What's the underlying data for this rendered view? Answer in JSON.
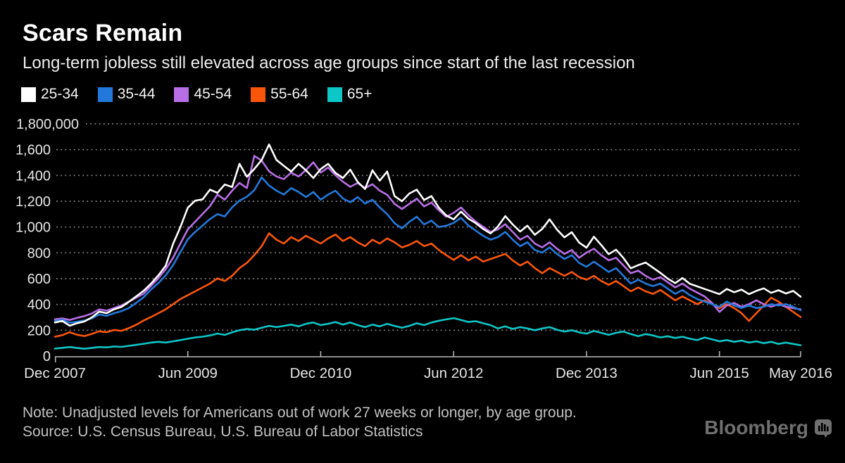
{
  "header": {
    "title": "Scars Remain",
    "subtitle": "Long-term jobless still elevated across age groups since start of the last recession"
  },
  "footer": {
    "note": "Note: Unadjusted levels for Americans out of work 27 weeks or longer, by age group.",
    "source": "Source: U.S. Census Bureau, U.S. Bureau of Labor Statistics",
    "brand": "Bloomberg"
  },
  "colors": {
    "background": "#000000",
    "gridline": "#8a8a8a",
    "axis": "#bbbbbb",
    "tick_label": "#e6e6e6"
  },
  "chart_data": {
    "type": "line",
    "title": "Scars Remain",
    "xlabel": "",
    "ylabel": "",
    "values_in": "thousands of persons",
    "x_unit": "month",
    "x_range": [
      "Dec 2007",
      "May 2016"
    ],
    "ylim": [
      0,
      1800
    ],
    "grid": "dotted horizontal",
    "legend_position": "top-left",
    "y_ticks": [
      {
        "value": 1800,
        "label": "1,800,000"
      },
      {
        "value": 1600,
        "label": "1,600"
      },
      {
        "value": 1400,
        "label": "1,400"
      },
      {
        "value": 1200,
        "label": "1,200"
      },
      {
        "value": 1000,
        "label": "1,000"
      },
      {
        "value": 800,
        "label": "800"
      },
      {
        "value": 600,
        "label": "600"
      },
      {
        "value": 400,
        "label": "400"
      },
      {
        "value": 200,
        "label": "200"
      },
      {
        "value": 0,
        "label": "0"
      }
    ],
    "x_ticks": [
      {
        "month_index": 0,
        "label": "Dec 2007"
      },
      {
        "month_index": 18,
        "label": "Jun 2009"
      },
      {
        "month_index": 36,
        "label": "Dec 2010"
      },
      {
        "month_index": 54,
        "label": "Jun 2012"
      },
      {
        "month_index": 72,
        "label": "Dec 2013"
      },
      {
        "month_index": 90,
        "label": "Jun 2015"
      },
      {
        "month_index": 101,
        "label": "May 2016"
      }
    ],
    "series": [
      {
        "name": "25-34",
        "color": "#ffffff",
        "values": [
          260,
          272,
          235,
          255,
          268,
          300,
          345,
          332,
          362,
          380,
          420,
          462,
          505,
          560,
          625,
          700,
          870,
          1000,
          1150,
          1205,
          1215,
          1290,
          1265,
          1330,
          1310,
          1490,
          1390,
          1450,
          1520,
          1640,
          1520,
          1475,
          1430,
          1490,
          1440,
          1380,
          1450,
          1490,
          1420,
          1380,
          1445,
          1350,
          1295,
          1440,
          1360,
          1430,
          1240,
          1200,
          1260,
          1290,
          1210,
          1240,
          1150,
          1090,
          1060,
          1120,
          1065,
          1030,
          985,
          950,
          1005,
          1085,
          1020,
          965,
          1010,
          940,
          985,
          1060,
          980,
          920,
          960,
          880,
          840,
          925,
          860,
          790,
          825,
          760,
          680,
          705,
          725,
          685,
          645,
          600,
          565,
          605,
          560,
          540,
          520,
          500,
          480,
          520,
          495,
          515,
          480,
          505,
          525,
          490,
          510,
          485,
          505,
          460
        ]
      },
      {
        "name": "35-44",
        "color": "#2279db",
        "values": [
          272,
          282,
          258,
          266,
          276,
          292,
          322,
          312,
          332,
          348,
          372,
          412,
          455,
          515,
          565,
          625,
          705,
          805,
          905,
          962,
          1012,
          1062,
          1100,
          1082,
          1152,
          1205,
          1235,
          1285,
          1385,
          1322,
          1282,
          1252,
          1302,
          1272,
          1232,
          1272,
          1212,
          1252,
          1282,
          1222,
          1192,
          1232,
          1182,
          1212,
          1152,
          1100,
          1030,
          990,
          1040,
          1080,
          1020,
          1050,
          1000,
          1010,
          1032,
          1072,
          1012,
          972,
          932,
          902,
          922,
          962,
          902,
          852,
          882,
          822,
          802,
          842,
          792,
          752,
          782,
          722,
          692,
          732,
          692,
          652,
          682,
          622,
          562,
          592,
          562,
          542,
          562,
          522,
          482,
          512,
          472,
          442,
          422,
          402,
          382,
          422,
          392,
          372,
          392,
          372,
          382,
          402,
          392,
          402,
          382,
          355
        ]
      },
      {
        "name": "45-54",
        "color": "#b76ee6",
        "values": [
          285,
          292,
          280,
          296,
          310,
          330,
          362,
          352,
          372,
          392,
          422,
          452,
          482,
          542,
          602,
          672,
          762,
          872,
          982,
          1042,
          1102,
          1162,
          1252,
          1212,
          1282,
          1342,
          1302,
          1552,
          1515,
          1432,
          1392,
          1372,
          1422,
          1392,
          1442,
          1502,
          1422,
          1462,
          1402,
          1352,
          1312,
          1342,
          1302,
          1332,
          1282,
          1250,
          1180,
          1140,
          1180,
          1220,
          1160,
          1190,
          1130,
          1080,
          1110,
          1152,
          1092,
          1042,
          1002,
          962,
          982,
          1022,
          962,
          902,
          932,
          872,
          842,
          882,
          832,
          792,
          822,
          762,
          802,
          832,
          782,
          742,
          762,
          702,
          642,
          662,
          622,
          592,
          612,
          572,
          532,
          562,
          522,
          492,
          462,
          412,
          342,
          392,
          412,
          382,
          402,
          432,
          402,
          382,
          402,
          382,
          372,
          362
        ]
      },
      {
        "name": "55-64",
        "color": "#fa560a",
        "values": [
          150,
          162,
          185,
          165,
          155,
          172,
          192,
          185,
          202,
          196,
          216,
          242,
          275,
          302,
          332,
          362,
          402,
          442,
          472,
          502,
          532,
          562,
          602,
          582,
          622,
          682,
          722,
          782,
          852,
          952,
          902,
          872,
          922,
          892,
          932,
          902,
          872,
          912,
          942,
          892,
          922,
          882,
          852,
          902,
          872,
          912,
          882,
          842,
          862,
          892,
          852,
          872,
          822,
          782,
          745,
          782,
          742,
          772,
          732,
          752,
          772,
          792,
          742,
          702,
          732,
          682,
          642,
          682,
          652,
          622,
          652,
          612,
          592,
          622,
          582,
          552,
          582,
          542,
          502,
          532,
          502,
          482,
          512,
          472,
          432,
          462,
          432,
          402,
          432,
          402,
          372,
          402,
          372,
          332,
          272,
          332,
          392,
          452,
          422,
          382,
          342,
          302
        ]
      },
      {
        "name": "65+",
        "color": "#0dc6c6",
        "values": [
          58,
          64,
          70,
          62,
          57,
          63,
          70,
          67,
          74,
          71,
          79,
          87,
          95,
          104,
          110,
          105,
          114,
          124,
          134,
          144,
          150,
          160,
          174,
          164,
          184,
          200,
          210,
          204,
          220,
          234,
          224,
          234,
          244,
          230,
          250,
          260,
          240,
          250,
          264,
          244,
          260,
          240,
          224,
          244,
          230,
          250,
          234,
          220,
          234,
          254,
          240,
          260,
          274,
          284,
          294,
          280,
          264,
          270,
          254,
          240,
          214,
          230,
          210,
          224,
          214,
          200,
          214,
          224,
          204,
          190,
          200,
          184,
          174,
          194,
          180,
          164,
          180,
          190,
          170,
          154,
          170,
          160,
          144,
          154,
          140,
          150,
          134,
          124,
          144,
          130,
          114,
          124,
          110,
          120,
          104,
          114,
          100,
          110,
          94,
          104,
          94,
          84
        ]
      }
    ]
  }
}
